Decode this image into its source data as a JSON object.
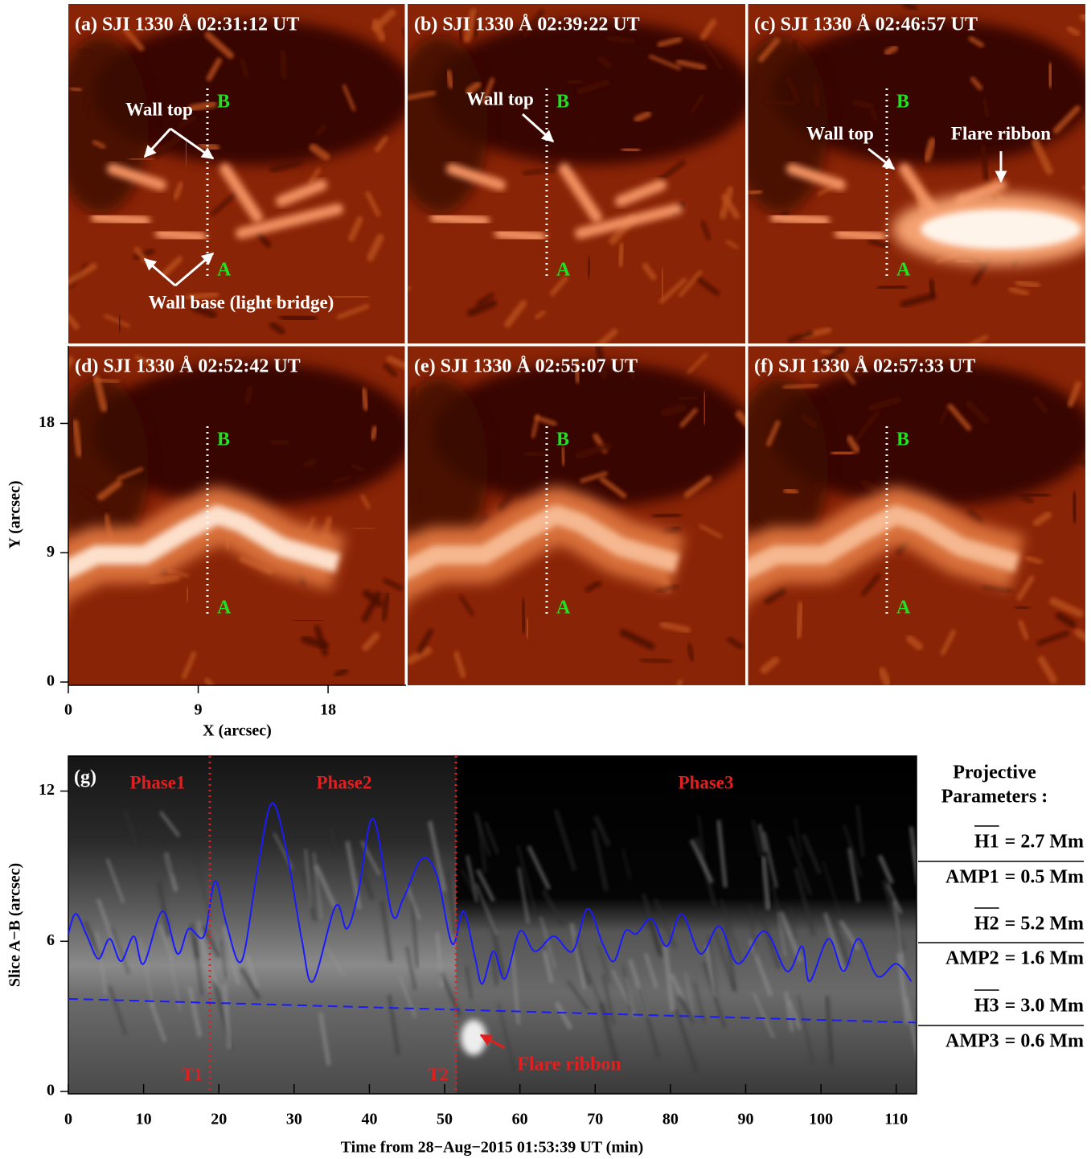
{
  "images": [
    {
      "title": "(a) SJI 1330 Å  02:31:12 UT",
      "annotations": [
        "Wall top",
        "Wall base (light bridge)"
      ]
    },
    {
      "title": "(b) SJI 1330 Å  02:39:22 UT",
      "annotations": [
        "Wall top"
      ]
    },
    {
      "title": "(c) SJI 1330 Å  02:46:57 UT",
      "annotations": [
        "Wall top",
        "Flare ribbon"
      ]
    },
    {
      "title": "(d) SJI 1330 Å  02:52:42 UT",
      "annotations": []
    },
    {
      "title": "(e) SJI 1330 Å  02:55:07 UT",
      "annotations": []
    },
    {
      "title": "(f) SJI 1330 Å  02:57:33 UT",
      "annotations": []
    }
  ],
  "slice_endpoints": [
    "A",
    "B"
  ],
  "image_axes": {
    "xlabel": "X (arcsec)",
    "ylabel": "Y (arcsec)",
    "xlim": [
      0,
      23.4
    ],
    "ylim": [
      0,
      23.4
    ],
    "xticks": [
      0,
      9,
      18
    ],
    "yticks": [
      0,
      9,
      18
    ]
  },
  "chart_data": {
    "type": "line",
    "label": "(g)",
    "xlabel": "Time from 28−Aug−2015 01:53:39 UT (min)",
    "ylabel": "Slice A−B (arcsec)",
    "xlim": [
      0,
      112.7
    ],
    "ylim": [
      0,
      13.4
    ],
    "xticks": [
      0,
      10,
      20,
      30,
      40,
      50,
      60,
      70,
      80,
      90,
      100,
      110
    ],
    "yticks": [
      0,
      6,
      12
    ],
    "series": [
      {
        "color": "#1a1aff",
        "style": "solid",
        "x": [
          0,
          1,
          2.5,
          4,
          5.5,
          7,
          8.7,
          10,
          12.5,
          14.5,
          16,
          18,
          19.5,
          21,
          23,
          25,
          27,
          29,
          31,
          32.5,
          35.5,
          37,
          38.5,
          40.5,
          43,
          44.5,
          47,
          49,
          51,
          52.5,
          54,
          55,
          56.5,
          58,
          60,
          62,
          64.5,
          67,
          69,
          71,
          72.5,
          74,
          75.5,
          77.5,
          79.5,
          81.5,
          84,
          86.5,
          89,
          92.5,
          95.5,
          97.5,
          98.5,
          101,
          103,
          105,
          107.5,
          110,
          112
        ],
        "values": [
          6.3,
          7.1,
          6.2,
          5.3,
          6.1,
          5.2,
          6.2,
          5.1,
          7.2,
          5.5,
          6.5,
          6.2,
          8.4,
          6.7,
          5.2,
          8.6,
          11.5,
          9.6,
          6.1,
          4.4,
          7.4,
          6.5,
          7.9,
          10.9,
          7.1,
          7.7,
          9.3,
          8.6,
          5.9,
          7.2,
          5.4,
          4.3,
          5.6,
          4.5,
          6.4,
          5.6,
          6.2,
          5.6,
          7.3,
          5.9,
          5.2,
          6.4,
          6.3,
          6.9,
          5.8,
          7.1,
          5.5,
          6.6,
          5.1,
          6.4,
          4.8,
          5.8,
          4.4,
          6.1,
          4.8,
          6.1,
          4.6,
          5.1,
          4.4
        ]
      },
      {
        "color": "#1a1aff",
        "style": "dashed",
        "x": [
          0,
          112.7
        ],
        "values": [
          3.7,
          2.75
        ]
      }
    ],
    "vlines": [
      {
        "x": 18.8,
        "label": "T1",
        "color": "#e02020"
      },
      {
        "x": 51.5,
        "label": "T2",
        "color": "#e02020"
      }
    ],
    "annotations": [
      "Phase1",
      "Phase2",
      "Phase3",
      "Flare ribbon"
    ]
  },
  "parameters": {
    "title": [
      "Projective",
      "Parameters :"
    ],
    "items": [
      {
        "name": "H1",
        "rest": "= 2.7 Mm"
      },
      {
        "name": "AMP1",
        "rest": "= 0.5 Mm"
      },
      {
        "name": "H2",
        "rest": "= 5.2 Mm"
      },
      {
        "name": "AMP2",
        "rest": "= 1.6 Mm"
      },
      {
        "name": "H3",
        "rest": "= 3.0 Mm"
      },
      {
        "name": "AMP3",
        "rest": "= 0.6 Mm"
      }
    ]
  }
}
